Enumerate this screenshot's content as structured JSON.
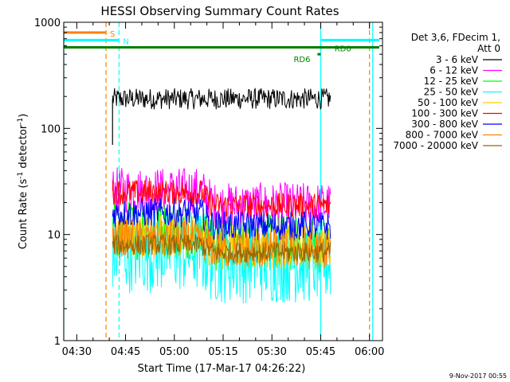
{
  "chart_data": {
    "type": "line",
    "title": "HESSI Observing Summary Count Rates",
    "xlabel": "Start Time (17-Mar-17 04:26:22)",
    "ylabel_main": "Count Rate (s",
    "ylabel_sup1": "-1",
    "ylabel_mid": " detector",
    "ylabel_sup2": "-1",
    "ylabel_end": ")",
    "xscale": "time-minutes",
    "yscale": "log",
    "xlim": [
      "04:26",
      "06:04"
    ],
    "ylim": [
      1,
      1000
    ],
    "xtick_values": [
      "04:30",
      "04:45",
      "05:00",
      "05:15",
      "05:30",
      "05:45",
      "06:00"
    ],
    "ytick_values": [
      1,
      10,
      100,
      1000
    ],
    "ytick_labels": [
      "1",
      "10",
      "100",
      "1000"
    ],
    "legend": {
      "header1": "Det 3,6, FDecim 1,",
      "header2": "Att 0",
      "placement": "right"
    },
    "series": [
      {
        "name": "3 - 6 keV",
        "color": "#000000",
        "values_start": "04:41",
        "values_end": "05:48",
        "level": 190,
        "dip": 1.0,
        "noise": 0.1
      },
      {
        "name": "6 - 12 keV",
        "color": "#ff00ff",
        "values_start": "04:41",
        "values_end": "05:48",
        "level": 26,
        "dip": 0.72,
        "noise": 0.22
      },
      {
        "name": "12 - 25 keV",
        "color": "#00ff00",
        "values_start": "04:41",
        "values_end": "05:48",
        "level": 11,
        "dip": 0.75,
        "noise": 0.28
      },
      {
        "name": "25 - 50 keV",
        "color": "#00ffff",
        "values_start": "04:41",
        "values_end": "05:48",
        "level": 7,
        "dip": 0.8,
        "noise": 0.4
      },
      {
        "name": "50 - 100 keV",
        "color": "#ffcc00",
        "values_start": "04:41",
        "values_end": "05:48",
        "level": 10,
        "dip": 0.78,
        "noise": 0.22
      },
      {
        "name": "100 - 300 keV",
        "color": "#ff0000",
        "values_start": "04:41",
        "values_end": "05:48",
        "level": 25,
        "dip": 0.75,
        "noise": 0.12
      },
      {
        "name": "300 - 800 keV",
        "color": "#0000ff",
        "values_start": "04:41",
        "values_end": "05:48",
        "level": 16,
        "dip": 0.75,
        "noise": 0.14
      },
      {
        "name": "800 - 7000 keV",
        "color": "#ff8000",
        "values_start": "04:41",
        "values_end": "05:48",
        "level": 9,
        "dip": 0.8,
        "noise": 0.18
      },
      {
        "name": "7000 - 20000 keV",
        "color": "#996600",
        "values_start": "04:41",
        "values_end": "05:48",
        "level": 8,
        "dip": 0.85,
        "noise": 0.1
      }
    ],
    "flags": [
      {
        "label": "S",
        "color": "#ff8000",
        "start": "04:26",
        "end": "04:39"
      },
      {
        "label": "N",
        "color": "#00ffff",
        "start": "04:26",
        "end": "04:43"
      },
      {
        "label": "",
        "color": "#00ffff",
        "start": "05:45",
        "end": "06:03"
      },
      {
        "label": "",
        "color": "#008000",
        "start": "04:26",
        "end": "06:03"
      },
      {
        "label": "RD6",
        "color": "#008000",
        "start": "05:44",
        "end": "05:45"
      },
      {
        "label": "RD0",
        "color": "#008000",
        "start": "05:45",
        "end": "05:48"
      }
    ],
    "markers": [
      {
        "time": "04:26",
        "color": "#00ffff",
        "style": "solid"
      },
      {
        "time": "04:39",
        "color": "#ff8000",
        "style": "dashed"
      },
      {
        "time": "04:43",
        "color": "#00ffff",
        "style": "dashed"
      },
      {
        "time": "05:45",
        "color": "#00ffff",
        "style": "solid"
      },
      {
        "time": "06:00",
        "color": "#ff8000",
        "style": "dashed"
      },
      {
        "time": "06:01",
        "color": "#00ffff",
        "style": "solid"
      }
    ],
    "timestamp": "9-Nov-2017 00:55"
  }
}
